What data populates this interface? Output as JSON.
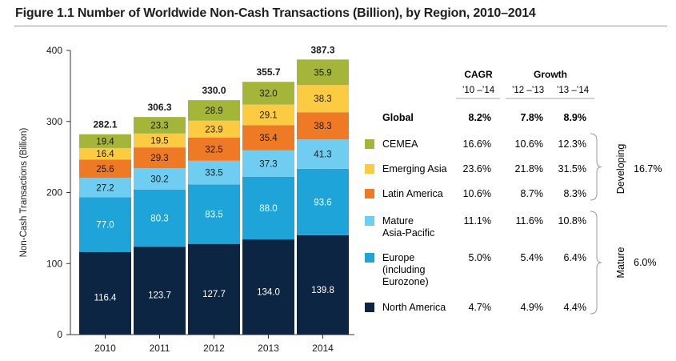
{
  "figure_title": "Figure 1.1 Number of Worldwide Non-Cash Transactions (Billion), by Region, 2010–2014",
  "colors": {
    "CEMEA": "#a4b539",
    "Emerging Asia": "#fccb42",
    "Latin America": "#ef7a26",
    "Mature Asia-Pacific": "#6fcdf1",
    "Europe (including Eurozone)": "#1fa4d9",
    "North America": "#0c2543"
  },
  "chart_data": {
    "type": "bar",
    "stacked": true,
    "title": "Figure 1.1 Number of Worldwide Non-Cash Transactions (Billion), by Region, 2010–2014",
    "ylabel": "Non-Cash Transactions (Billion)",
    "xlabel": "",
    "ylim": [
      0,
      400
    ],
    "yticks": [
      "0",
      "100",
      "200",
      "300",
      "400"
    ],
    "categories": [
      "2010",
      "2011",
      "2012",
      "2013",
      "2014"
    ],
    "totals": [
      "282.1",
      "306.3",
      "330.0",
      "355.7",
      "387.3"
    ],
    "series": [
      {
        "name": "North America",
        "values": [
          116.4,
          123.7,
          127.7,
          134.0,
          139.8
        ],
        "labels": [
          "116.4",
          "123.7",
          "127.7",
          "134.0",
          "139.8"
        ]
      },
      {
        "name": "Europe (including Eurozone)",
        "values": [
          77.0,
          80.3,
          83.5,
          88.0,
          93.6
        ],
        "labels": [
          "77.0",
          "80.3",
          "83.5",
          "88.0",
          "93.6"
        ]
      },
      {
        "name": "Mature Asia-Pacific",
        "values": [
          27.2,
          30.2,
          33.5,
          37.3,
          41.3
        ],
        "labels": [
          "27.2",
          "30.2",
          "33.5",
          "37.3",
          "41.3"
        ]
      },
      {
        "name": "Latin America",
        "values": [
          25.6,
          29.3,
          32.5,
          35.4,
          38.3
        ],
        "labels": [
          "25.6",
          "29.3",
          "32.5",
          "35.4",
          "38.3"
        ]
      },
      {
        "name": "Emerging Asia",
        "values": [
          16.4,
          19.5,
          23.9,
          29.1,
          38.3
        ],
        "labels": [
          "16.4",
          "19.5",
          "23.9",
          "29.1",
          "38.3"
        ]
      },
      {
        "name": "CEMEA",
        "values": [
          19.4,
          23.3,
          28.9,
          32.0,
          35.9
        ],
        "labels": [
          "19.4",
          "23.3",
          "28.9",
          "32.0",
          "35.9"
        ]
      }
    ]
  },
  "growth_table": {
    "headers": {
      "cagr": "CAGR",
      "cagr_period": "’10 –’14",
      "growth": "Growth",
      "growth_period_1": "’12 –’13",
      "growth_period_2": "’13 –’14"
    },
    "global": {
      "label": "Global",
      "cagr": "8.2%",
      "g1": "7.8%",
      "g2": "8.9%"
    },
    "rows": [
      {
        "label": "CEMEA",
        "color": "#a4b539",
        "cagr": "16.6%",
        "g1": "10.6%",
        "g2": "12.3%"
      },
      {
        "label": "Emerging Asia",
        "color": "#fccb42",
        "cagr": "23.6%",
        "g1": "21.8%",
        "g2": "31.5%"
      },
      {
        "label": "Latin America",
        "color": "#ef7a26",
        "cagr": "10.6%",
        "g1": "8.7%",
        "g2": "8.3%"
      },
      {
        "label": [
          "Mature",
          "Asia-Pacific"
        ],
        "color": "#6fcdf1",
        "cagr": "11.1%",
        "g1": "11.6%",
        "g2": "10.8%"
      },
      {
        "label": [
          "Europe",
          "(including",
          "Eurozone)"
        ],
        "color": "#1fa4d9",
        "cagr": "5.0%",
        "g1": "5.4%",
        "g2": "6.4%"
      },
      {
        "label": "North America",
        "color": "#0c2543",
        "cagr": "4.7%",
        "g1": "4.9%",
        "g2": "4.4%"
      }
    ],
    "groups": [
      {
        "label": "Developing",
        "value": "16.7%"
      },
      {
        "label": "Mature",
        "value": "6.0%"
      }
    ]
  }
}
